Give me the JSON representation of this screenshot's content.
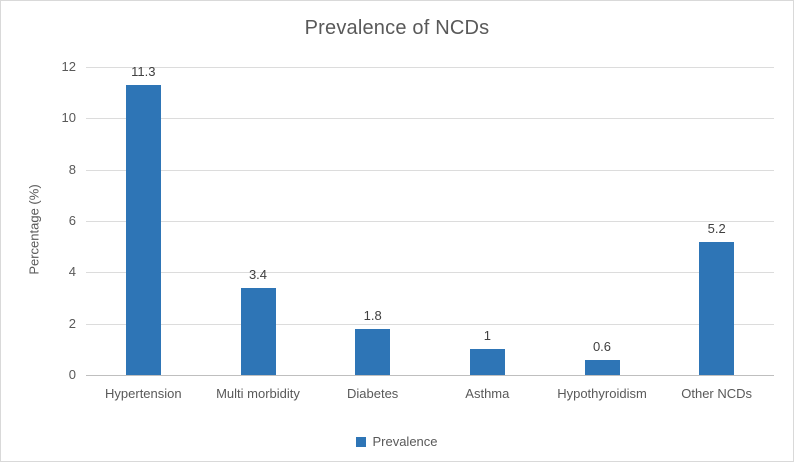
{
  "chart_data": {
    "type": "bar",
    "title": "Prevalence of NCDs",
    "categories": [
      "Hypertension",
      "Multi morbidity",
      "Diabetes",
      "Asthma",
      "Hypothyroidism",
      "Other NCDs"
    ],
    "series": [
      {
        "name": "Prevalence",
        "values": [
          11.3,
          3.4,
          1.8,
          1,
          0.6,
          5.2
        ]
      }
    ],
    "data_labels": [
      "11.3",
      "3.4",
      "1.8",
      "1",
      "0.6",
      "5.2"
    ],
    "xlabel": "",
    "ylabel": "Percentage (%)",
    "ylim": [
      0,
      12
    ],
    "yticks": [
      0,
      2,
      4,
      6,
      8,
      10,
      12
    ],
    "grid": true,
    "legend_position": "bottom-center",
    "colors": {
      "bar": "#2e75b6",
      "title_text": "#595959",
      "axis_text": "#595959",
      "data_label_text": "#404040",
      "gridline": "#dcdcdc",
      "axis_line": "#bfbfbf",
      "frame_border": "#d9d9d9",
      "background": "#ffffff"
    }
  }
}
